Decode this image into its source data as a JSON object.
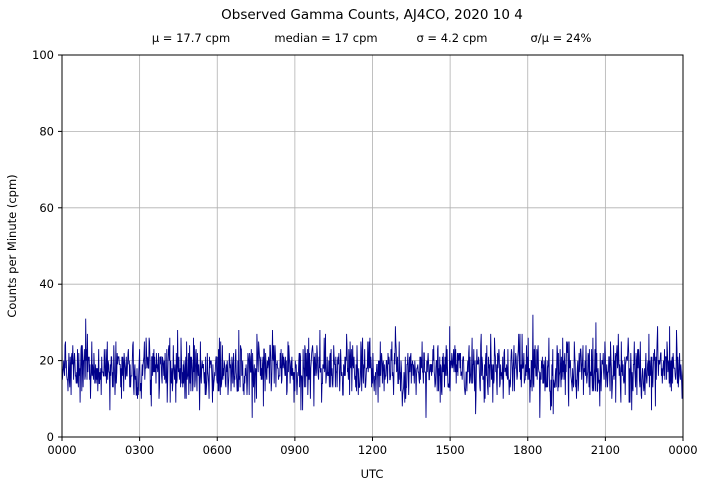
{
  "chart_data": {
    "type": "line",
    "title": "Observed Gamma Counts, AJ4CO, 2020 10 4",
    "subtitle_stats": [
      "μ = 17.7 cpm",
      "median = 17 cpm",
      "σ = 4.2 cpm",
      "σ/μ = 24%"
    ],
    "xlabel": "UTC",
    "ylabel": "Counts per Minute (cpm)",
    "x_tick_labels": [
      "0000",
      "0300",
      "0600",
      "0900",
      "1200",
      "1500",
      "1800",
      "2100",
      "0000"
    ],
    "x_tick_minutes": [
      0,
      180,
      360,
      540,
      720,
      900,
      1080,
      1260,
      1440
    ],
    "xlim_minutes": [
      0,
      1440
    ],
    "y_ticks": [
      0,
      20,
      40,
      60,
      80,
      100
    ],
    "ylim": [
      0,
      100
    ],
    "grid": true,
    "line_color": "#00008B",
    "grid_color": "#b0b0b0",
    "axis_color": "#000000",
    "series": {
      "name": "observed-gamma-counts",
      "n_points": 1440,
      "mean_cpm": 17.7,
      "median_cpm": 17,
      "sigma_cpm": 4.2,
      "sigma_over_mu_pct": 24,
      "approx_min_cpm": 4,
      "approx_max_cpm": 33,
      "values_are_integers": true,
      "distribution": "poisson-like noise around mean",
      "seed": 20201004
    }
  }
}
